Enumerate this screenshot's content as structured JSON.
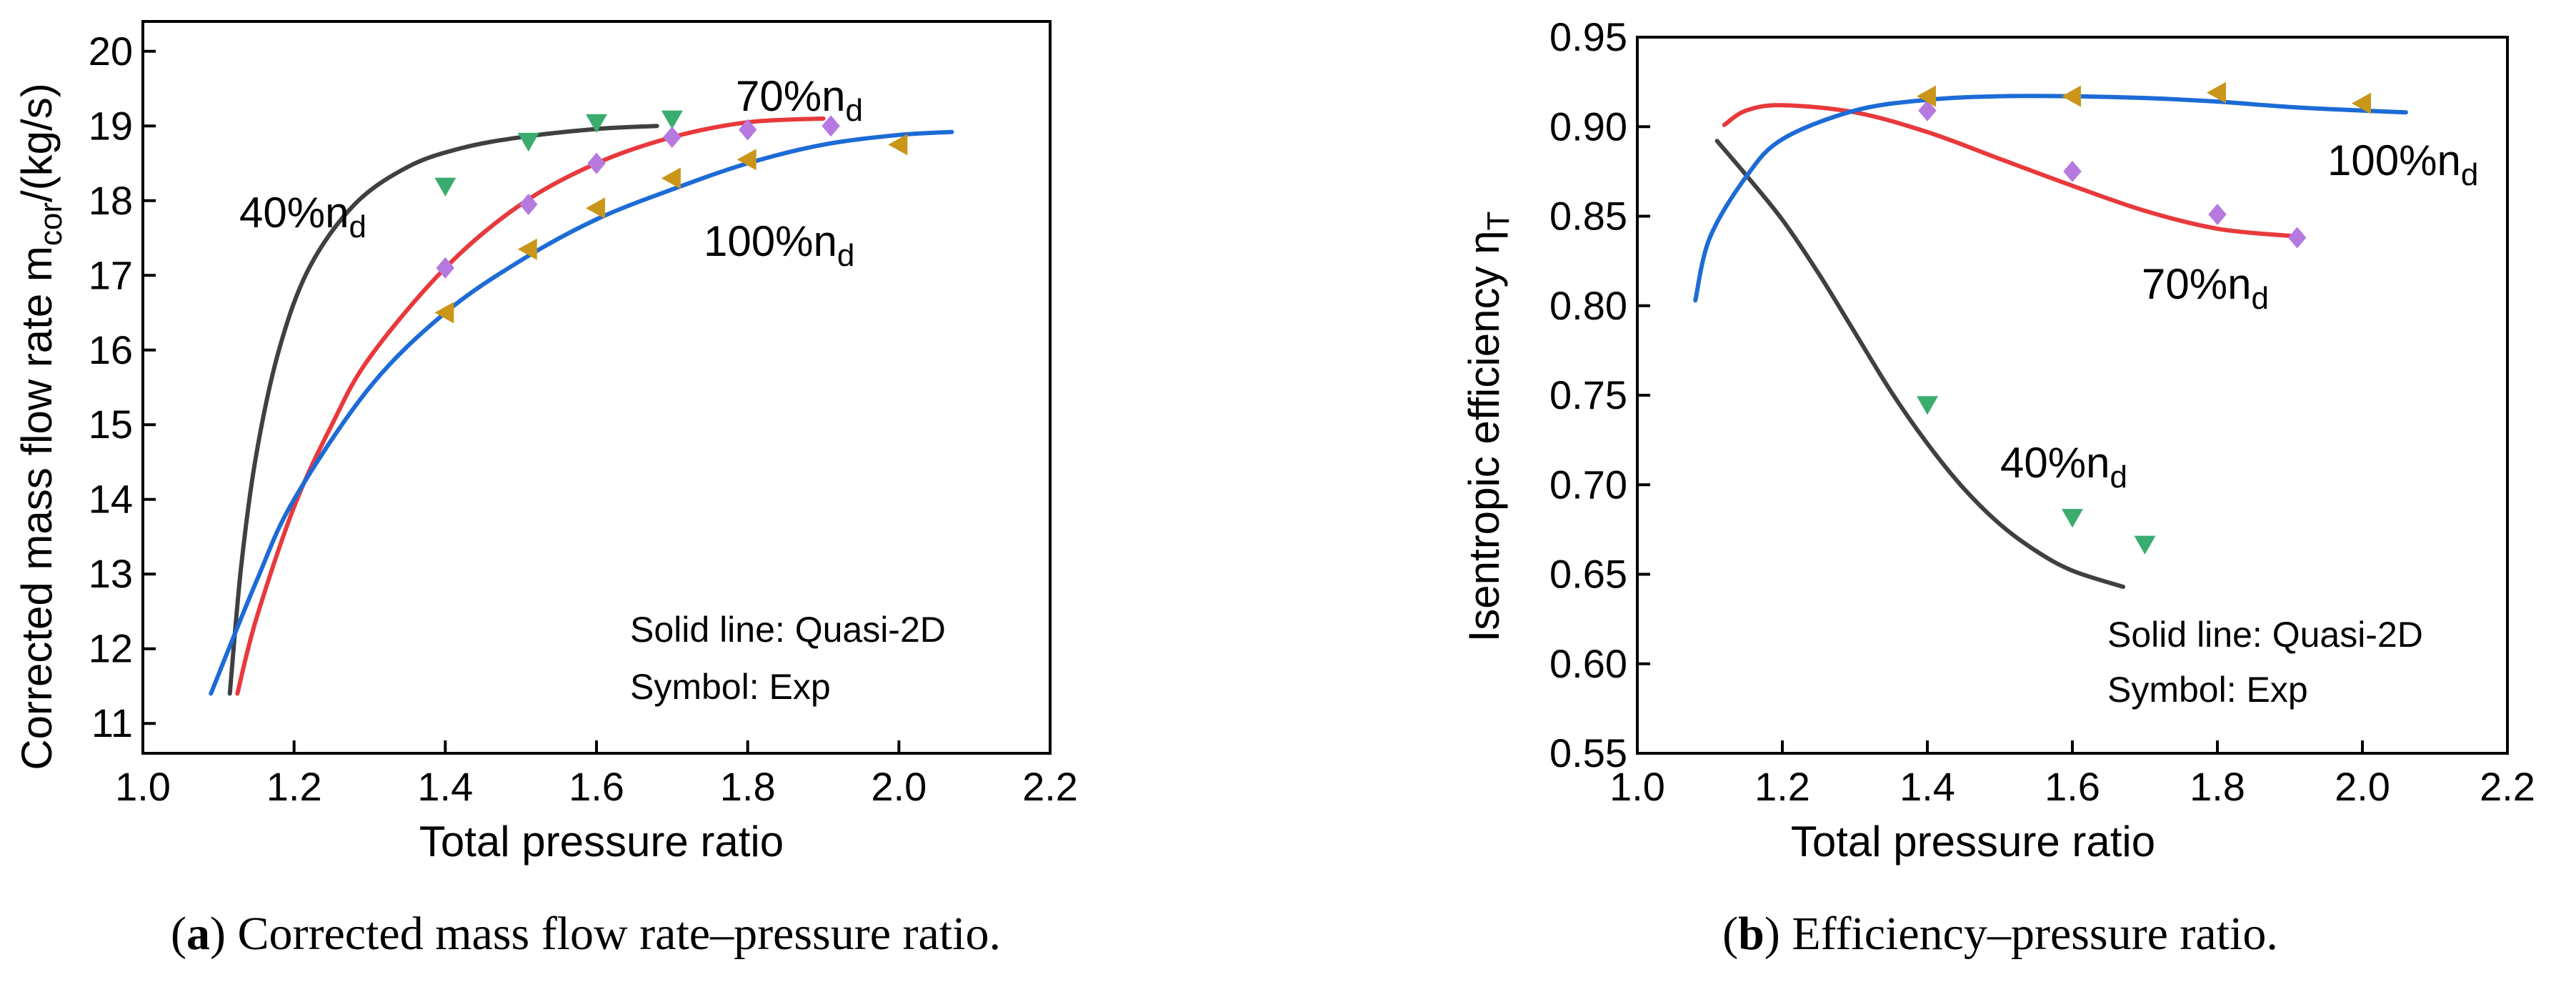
{
  "chart_data": [
    {
      "type": "line",
      "panel": "a",
      "ylabel_main": "Corrected mass flow rate m",
      "ylabel_sub": "cor",
      "ylabel_unit": "/(kg/s)",
      "xlabel": "Total pressure ratio",
      "xlim": [
        1.0,
        2.2
      ],
      "ylim": [
        10.6,
        20.4
      ],
      "xticks": [
        "1.0",
        "1.2",
        "1.4",
        "1.6",
        "1.8",
        "2.0",
        "2.2"
      ],
      "yticks": [
        "11",
        "12",
        "13",
        "14",
        "15",
        "16",
        "17",
        "18",
        "19",
        "20"
      ],
      "legend_note_lines": [
        "Solid line: Quasi-2D",
        "Symbol: Exp"
      ],
      "caption_letter": "a",
      "caption_text": "Corrected mass flow rate–pressure ratio.",
      "series": [
        {
          "name": "40%n_d",
          "label_main": "40%n",
          "label_sub": "d",
          "color": "#404040",
          "marker": "triangle-down",
          "marker_color": "#3aad6e",
          "line": {
            "x": [
              1.115,
              1.13,
              1.15,
              1.18,
              1.22,
              1.28,
              1.35,
              1.42,
              1.5,
              1.6,
              1.68
            ],
            "y": [
              11.4,
              13.1,
              14.6,
              16.0,
              17.1,
              17.95,
              18.45,
              18.7,
              18.85,
              18.96,
              19.0
            ]
          },
          "points": {
            "x": [
              1.4,
              1.51,
              1.6,
              1.7
            ],
            "y": [
              18.2,
              18.8,
              19.05,
              19.1
            ]
          }
        },
        {
          "name": "70%n_d",
          "label_main": "70%n",
          "label_sub": "d",
          "color": "#e8393c",
          "marker": "diamond",
          "marker_color": "#b679e0",
          "line": {
            "x": [
              1.125,
              1.15,
              1.2,
              1.25,
              1.3,
              1.4,
              1.5,
              1.6,
              1.7,
              1.8,
              1.9
            ],
            "y": [
              11.4,
              12.4,
              13.9,
              15.0,
              15.9,
              17.1,
              17.95,
              18.5,
              18.85,
              19.05,
              19.1
            ]
          },
          "points": {
            "x": [
              1.4,
              1.51,
              1.6,
              1.7,
              1.8,
              1.91
            ],
            "y": [
              17.1,
              17.95,
              18.5,
              18.85,
              18.95,
              19.0
            ]
          }
        },
        {
          "name": "100%n_d",
          "label_main": "100%n",
          "label_sub": "d",
          "color": "#1c6bd6",
          "marker": "triangle-left",
          "marker_color": "#c9961a",
          "line": {
            "x": [
              1.09,
              1.15,
              1.2,
              1.3,
              1.4,
              1.5,
              1.6,
              1.7,
              1.8,
              1.9,
              2.0,
              2.07
            ],
            "y": [
              11.4,
              12.9,
              14.0,
              15.5,
              16.5,
              17.2,
              17.75,
              18.15,
              18.5,
              18.75,
              18.88,
              18.92
            ]
          },
          "points": {
            "x": [
              1.4,
              1.51,
              1.6,
              1.7,
              1.8,
              2.0
            ],
            "y": [
              16.5,
              17.35,
              17.9,
              18.3,
              18.55,
              18.75
            ]
          }
        }
      ]
    },
    {
      "type": "line",
      "panel": "b",
      "ylabel_main": "Isentropic efficiency  η",
      "ylabel_sub": "T",
      "xlabel": "Total pressure ratio",
      "xlim": [
        1.0,
        2.2
      ],
      "ylim": [
        0.55,
        0.95
      ],
      "xticks": [
        "1.0",
        "1.2",
        "1.4",
        "1.6",
        "1.8",
        "2.0",
        "2.2"
      ],
      "yticks": [
        "0.55",
        "0.60",
        "0.65",
        "0.70",
        "0.75",
        "0.80",
        "0.85",
        "0.90",
        "0.95"
      ],
      "legend_note_lines": [
        "Solid line: Quasi-2D",
        "Symbol: Exp"
      ],
      "caption_letter": "b",
      "caption_text": "Efficiency–pressure ratio.",
      "series": [
        {
          "name": "40%n_d",
          "label_main": "40%n",
          "label_sub": "d",
          "color": "#404040",
          "marker": "triangle-down",
          "marker_color": "#3aad6e",
          "line": {
            "x": [
              1.11,
              1.15,
              1.2,
              1.25,
              1.3,
              1.35,
              1.4,
              1.45,
              1.5,
              1.55,
              1.6,
              1.67
            ],
            "y": [
              0.892,
              0.873,
              0.848,
              0.818,
              0.785,
              0.752,
              0.723,
              0.698,
              0.678,
              0.663,
              0.652,
              0.643
            ]
          },
          "points": {
            "x": [
              1.4,
              1.6,
              1.7
            ],
            "y": [
              0.745,
              0.682,
              0.667
            ]
          }
        },
        {
          "name": "70%n_d",
          "label_main": "70%n",
          "label_sub": "d",
          "color": "#e8393c",
          "marker": "diamond",
          "marker_color": "#b679e0",
          "line": {
            "x": [
              1.12,
              1.15,
              1.2,
              1.3,
              1.4,
              1.5,
              1.6,
              1.7,
              1.8,
              1.9
            ],
            "y": [
              0.901,
              0.909,
              0.912,
              0.908,
              0.897,
              0.882,
              0.867,
              0.853,
              0.843,
              0.839
            ]
          },
          "points": {
            "x": [
              1.4,
              1.6,
              1.8,
              1.91
            ],
            "y": [
              0.909,
              0.875,
              0.851,
              0.838
            ]
          }
        },
        {
          "name": "100%n_d",
          "label_main": "100%n",
          "label_sub": "d",
          "color": "#1c6bd6",
          "marker": "triangle-left",
          "marker_color": "#c9961a",
          "line": {
            "x": [
              1.08,
              1.1,
              1.15,
              1.2,
              1.3,
              1.4,
              1.5,
              1.6,
              1.7,
              1.8,
              1.9,
              2.0,
              2.06
            ],
            "y": [
              0.803,
              0.838,
              0.872,
              0.893,
              0.909,
              0.915,
              0.917,
              0.917,
              0.916,
              0.914,
              0.911,
              0.909,
              0.908
            ]
          },
          "points": {
            "x": [
              1.4,
              1.6,
              1.8,
              2.0
            ],
            "y": [
              0.917,
              0.917,
              0.919,
              0.913
            ]
          }
        }
      ]
    }
  ]
}
